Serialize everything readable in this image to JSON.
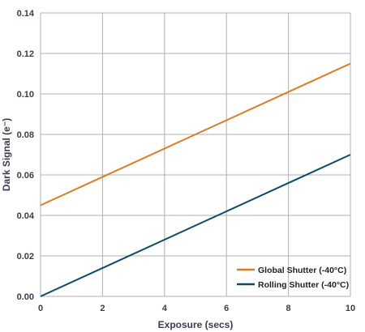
{
  "chart_data": {
    "type": "line",
    "xlabel": "Exposure (secs)",
    "ylabel": "Dark Signal (e⁻)",
    "xlim": [
      0,
      10
    ],
    "ylim": [
      0,
      0.14
    ],
    "x_ticks": [
      "0",
      "2",
      "4",
      "6",
      "8",
      "10"
    ],
    "y_ticks": [
      "0.00",
      "0.02",
      "0.04",
      "0.06",
      "0.08",
      "0.10",
      "0.12",
      "0.14"
    ],
    "grid": true,
    "legend_position": "bottom-right",
    "series": [
      {
        "name": "Global Shutter (-40°C)",
        "color": "#e07b24",
        "x": [
          0,
          10
        ],
        "y": [
          0.045,
          0.115
        ]
      },
      {
        "name": "Rolling Shutter (-40°C)",
        "color": "#0d4a6b",
        "x": [
          0,
          10
        ],
        "y": [
          0.0,
          0.07
        ]
      }
    ]
  }
}
